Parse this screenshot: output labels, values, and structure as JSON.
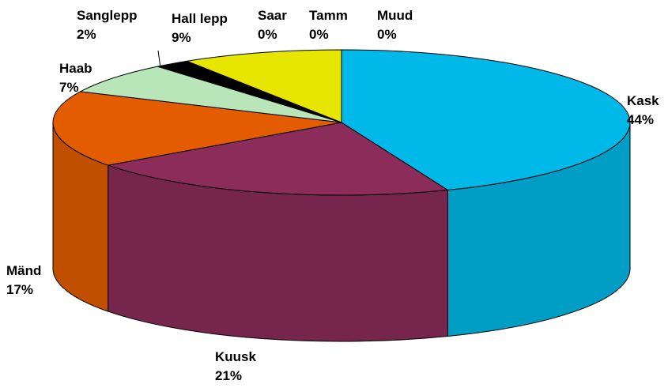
{
  "chart_data": {
    "type": "pie",
    "categories": [
      "Kask",
      "Kuusk",
      "Mänd",
      "Haab",
      "Sanglepp",
      "Hall lepp",
      "Saar",
      "Tamm",
      "Muud"
    ],
    "values": [
      44,
      21,
      17,
      7,
      2,
      9,
      0,
      0,
      0
    ],
    "value_labels": [
      "44%",
      "21%",
      "17%",
      "7%",
      "2%",
      "9%",
      "0%",
      "0%",
      "0%"
    ],
    "colors": [
      "#00b9e8",
      "#8b2c5b",
      "#e35d00",
      "#b9e6b9",
      "#000000",
      "#e6e600",
      "#ffffff",
      "#3366cc",
      "#000080"
    ]
  }
}
